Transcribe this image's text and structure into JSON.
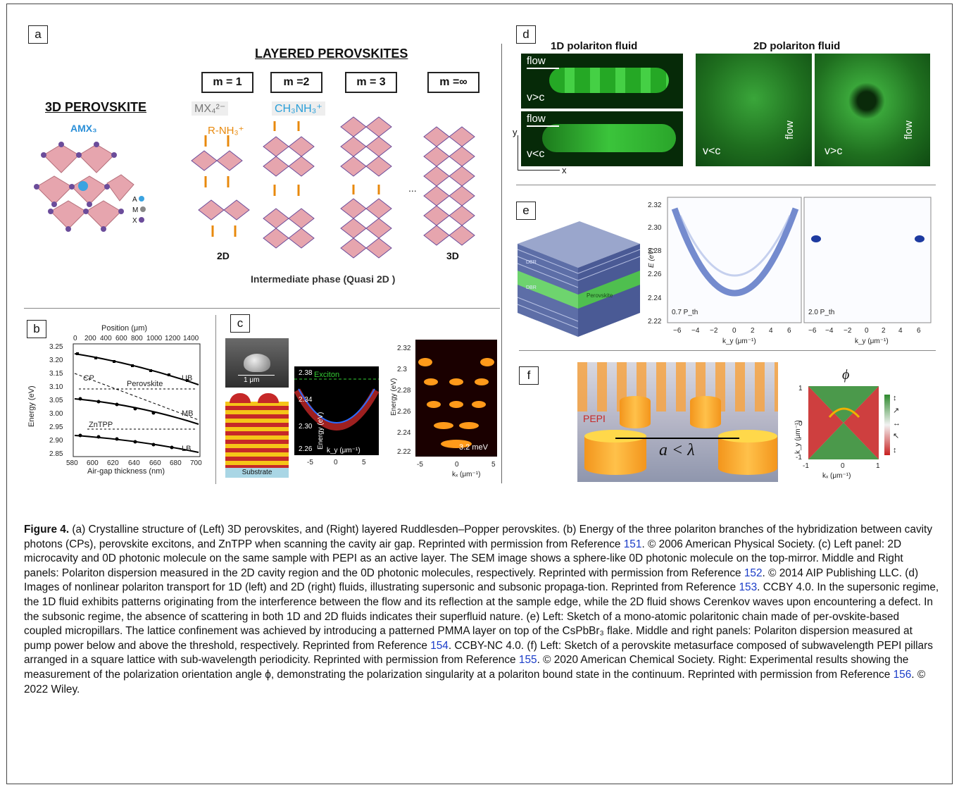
{
  "panels": {
    "a": {
      "label": "a",
      "left_title": "3D PEROVSKITE",
      "formula": "AMX₃",
      "legend": [
        "A",
        "M",
        "X"
      ],
      "right_title": "LAYERED PEROVSKITES",
      "m_tags": [
        "m = 1",
        "m =2",
        "m = 3",
        "m =∞"
      ],
      "mx4": "MX₄²⁻",
      "rnh3": "R-NH₃⁺",
      "ch3nh3": "CH₃NH₃⁺",
      "dots": "...",
      "label_2d": "2D",
      "label_3d": "3D",
      "bottom_caption": "Intermediate phase (Quasi 2D )"
    },
    "b": {
      "label": "b",
      "top_axis_title": "Position (μm)",
      "top_ticks": [
        "0",
        "200",
        "400",
        "600",
        "800",
        "1000",
        "1200",
        "1400"
      ],
      "ylabel": "Energy (eV)",
      "xlabel": "Air-gap thickness (nm)",
      "yticks": [
        "3.25",
        "3.20",
        "3.15",
        "3.10",
        "3.05",
        "3.00",
        "2.95",
        "2.90",
        "2.85"
      ],
      "xticks": [
        "580",
        "600",
        "620",
        "640",
        "660",
        "680",
        "700"
      ],
      "curve_labels": {
        "ub": "UB",
        "mb": "MB",
        "lb": "LB",
        "cp": "CP",
        "perovskite": "Perovskite",
        "zntpp": "ZnTPP"
      }
    },
    "c": {
      "label": "c",
      "scale_bar": "1 μm",
      "substrate": "Substrate",
      "exciton": "Exciton",
      "inset_yticks": [
        "2.38",
        "2.34",
        "2.30",
        "2.26"
      ],
      "inset_xticks": [
        "-5",
        "0",
        "5"
      ],
      "inset_ylabel": "Energy (eV)",
      "inset_xlabel": "k_y (μm⁻¹)",
      "right_yticks": [
        "2.32",
        "2.3",
        "2.28",
        "2.26",
        "2.24",
        "2.22"
      ],
      "right_xticks": [
        "-5",
        "0",
        "5"
      ],
      "right_ylabel": "Energy (eV)",
      "right_xlabel": "kₓ (μm⁻¹)",
      "annotation": "3.2 meV"
    },
    "d": {
      "label": "d",
      "title_1d": "1D polariton fluid",
      "title_2d": "2D polariton fluid",
      "flow": "flow",
      "v_gt_c": "v>c",
      "v_lt_c": "v<c",
      "axis_y": "y",
      "axis_x": "x"
    },
    "e": {
      "label": "e",
      "dbr_top": "DBR",
      "dbr_bottom": "DBR",
      "perovskite": "Perovskite",
      "yticks": [
        "2.32",
        "2.30",
        "2.28",
        "2.26",
        "2.24",
        "2.22"
      ],
      "xticks": [
        "−6",
        "−4",
        "−2",
        "0",
        "2",
        "4",
        "6"
      ],
      "ylabel": "E (eV)",
      "xlabel": "k_y (μm⁻¹)",
      "left_power": "0.7 P_th",
      "right_power": "2.0 P_th"
    },
    "f": {
      "label": "f",
      "pepi": "PEPI",
      "relation": "a < λ",
      "phi": "ϕ",
      "yticks": [
        "1",
        "0",
        "-1"
      ],
      "xticks": [
        "-1",
        "0",
        "1"
      ],
      "ylabel": "k_y (μm⁻¹)",
      "xlabel": "kₓ (μm⁻¹)"
    }
  },
  "caption": {
    "fig": "Figure 4.",
    "t1": " (a) Crystalline structure of (Left) 3D perovskites, and (Right) layered Ruddlesden–Popper perovskites. (b) Energy of the three polariton branches of the hybridization between cavity photons (CPs), perovskite excitons, and ZnTPP when scanning the cavity air gap. Reprinted with permission from Reference ",
    "r1": "151",
    "t2": ". © 2006 American Physical Society. (c) Left panel: 2D microcavity and 0D photonic molecule on the same sample with PEPI as an active layer. The SEM image shows a sphere-like 0D photonic molecule on the top-mirror. Middle and Right panels: Polariton dispersion measured in the 2D cavity region and the 0D photonic molecules, respectively. Reprinted with permission from Reference ",
    "r2": "152",
    "t3": ". © 2014 AIP Publishing LLC. (d) Images of nonlinear polariton transport for 1D (left) and 2D (right) fluids, illustrating supersonic and subsonic propaga-tion. Reprinted from Reference ",
    "r3": "153",
    "t4": ". CCBY 4.0. In the supersonic regime, the 1D fluid exhibits patterns originating from the interference between the flow and its reflection at the sample edge, while the 2D fluid shows Cerenkov waves upon encountering a defect. In the subsonic regime, the absence of scattering in both 1D and 2D fluids indicates their superfluid nature. (e) Left: Sketch of a mono-atomic polaritonic chain made of per-ovskite-based coupled micropillars. The lattice confinement was achieved by introducing a patterned PMMA layer on top of the CsPbBr₃ flake. Middle and right panels: Polariton dispersion measured at pump power below and above the threshold, respectively. Reprinted from Reference ",
    "r4": "154",
    "t5": ". CCBY-NC 4.0. (f) Left: Sketch of a perovskite metasurface composed of subwavelength PEPI pillars arranged in a square lattice with sub-wavelength periodicity. Reprinted with permission from Reference ",
    "r5": "155",
    "t6": ". © 2020 American Chemical Society. Right: Experimental results showing the measurement of the polarization orientation angle ϕ, demonstrating the polarization singularity at a polariton bound state in the continuum. Reprinted with permission from Reference ",
    "r6": "156",
    "t7": ". © 2022 Wiley."
  }
}
